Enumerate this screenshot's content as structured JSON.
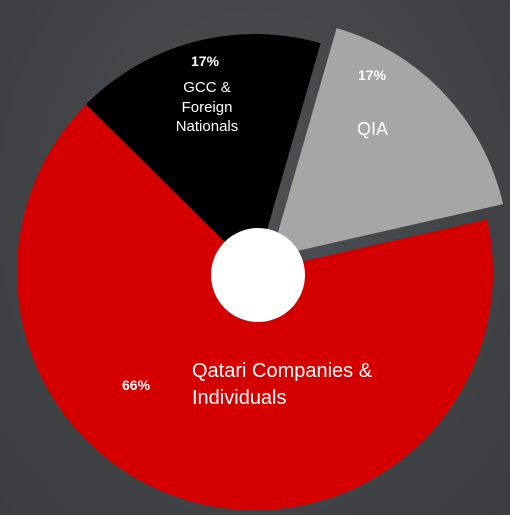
{
  "chart_data": {
    "type": "pie",
    "categories": [
      "QIA",
      "Qatari Companies & Individuals",
      "GCC & Foreign Nationals"
    ],
    "values": [
      17,
      66,
      17
    ],
    "value_labels": [
      "17%",
      "66%",
      "17%"
    ],
    "colors": [
      "#a6a6a6",
      "#d40000",
      "#000000"
    ],
    "exploded": [
      true,
      false,
      false
    ],
    "donut_hole": true
  }
}
